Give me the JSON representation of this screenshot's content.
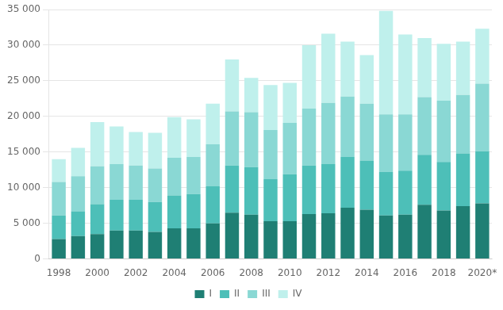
{
  "chart_data": {
    "type": "bar",
    "stacked": true,
    "grid": true,
    "legend": "bottom",
    "categories": [
      "1998",
      null,
      "2000",
      null,
      "2002",
      null,
      "2004",
      null,
      "2006",
      null,
      "2008",
      null,
      "2010",
      null,
      "2012",
      null,
      "2014",
      null,
      "2016",
      null,
      "2018",
      null,
      "2020*"
    ],
    "series": [
      {
        "name": "I",
        "color": "#1f7f74",
        "values": [
          2800,
          3200,
          3500,
          4000,
          4000,
          3800,
          4300,
          4300,
          5000,
          6500,
          6200,
          5300,
          5300,
          6300,
          6400,
          7200,
          6900,
          6100,
          6200,
          7600,
          6800,
          7400,
          7800
        ]
      },
      {
        "name": "II",
        "color": "#4dbfb8",
        "values": [
          3300,
          3500,
          4200,
          4300,
          4300,
          4200,
          4600,
          4800,
          5200,
          6600,
          6700,
          5900,
          6600,
          6800,
          6900,
          7100,
          6900,
          6100,
          6200,
          7000,
          6800,
          7400,
          7300
        ]
      },
      {
        "name": "III",
        "color": "#8ad8d4",
        "values": [
          4700,
          4900,
          5300,
          5000,
          4800,
          4700,
          5300,
          5200,
          5900,
          7600,
          7700,
          6900,
          7200,
          8000,
          8600,
          8500,
          8000,
          8100,
          7900,
          8100,
          8600,
          8200,
          9500
        ]
      },
      {
        "name": "IV",
        "color": "#bff0ec",
        "values": [
          3200,
          4000,
          6200,
          5300,
          4700,
          5000,
          5700,
          5300,
          5700,
          7300,
          4800,
          6300,
          5600,
          8900,
          9700,
          7700,
          6800,
          14500,
          11200,
          8300,
          8000,
          7500,
          7700
        ]
      }
    ],
    "ylim": [
      0,
      35000
    ],
    "yticks": [
      0,
      {
        "value": 5000,
        "label": "5 000"
      },
      {
        "value": 10000,
        "label": "10 000"
      },
      {
        "value": 15000,
        "label": "15 000"
      },
      {
        "value": 20000,
        "label": "20 000"
      },
      {
        "value": 25000,
        "label": "25 000"
      },
      {
        "value": 30000,
        "label": "30 000"
      },
      {
        "value": 35000,
        "label": "35 000"
      }
    ]
  }
}
